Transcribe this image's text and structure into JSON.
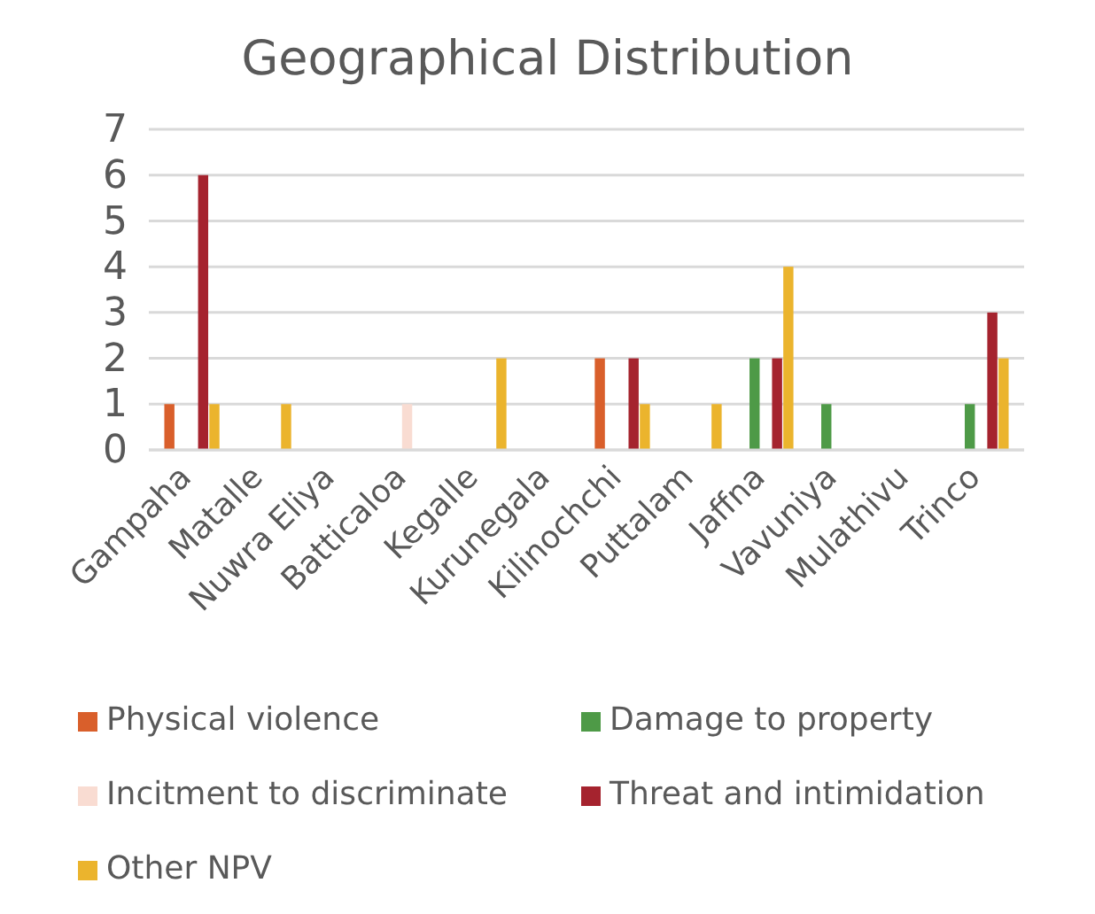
{
  "chart_data": {
    "type": "bar",
    "title": "Geographical Distribution",
    "categories": [
      "Gampaha",
      "Matalle",
      "Nuwra Eliya",
      "Batticaloa",
      "Kegalle",
      "Kurunegala",
      "Kilinochchi",
      "Puttalam",
      "Jaffna",
      "Vavuniya",
      "Mulathivu",
      "Trinco"
    ],
    "series": [
      {
        "name": "Physical violence",
        "color": "#d95f2b",
        "values": [
          1,
          0,
          0,
          0,
          0,
          0,
          2,
          0,
          0,
          0,
          0,
          0
        ]
      },
      {
        "name": "Damage to property",
        "color": "#4e9a47",
        "values": [
          0,
          0,
          0,
          0,
          0,
          0,
          0,
          0,
          2,
          1,
          0,
          1
        ]
      },
      {
        "name": "Incitment to discriminate",
        "color": "#f9dcd2",
        "values": [
          0,
          0,
          0,
          1,
          0,
          0,
          0,
          0,
          0,
          0,
          0,
          0
        ]
      },
      {
        "name": "Threat and intimidation",
        "color": "#a5232e",
        "values": [
          6,
          0,
          0,
          0,
          0,
          0,
          2,
          0,
          2,
          0,
          0,
          3
        ]
      },
      {
        "name": "Other NPV",
        "color": "#ebb42d",
        "values": [
          1,
          1,
          0,
          0,
          2,
          0,
          1,
          1,
          4,
          0,
          0,
          2
        ]
      }
    ],
    "ylim": [
      0,
      7
    ],
    "yticks": [
      0,
      1,
      2,
      3,
      4,
      5,
      6,
      7
    ],
    "grid": "y",
    "legend": "bottom"
  }
}
